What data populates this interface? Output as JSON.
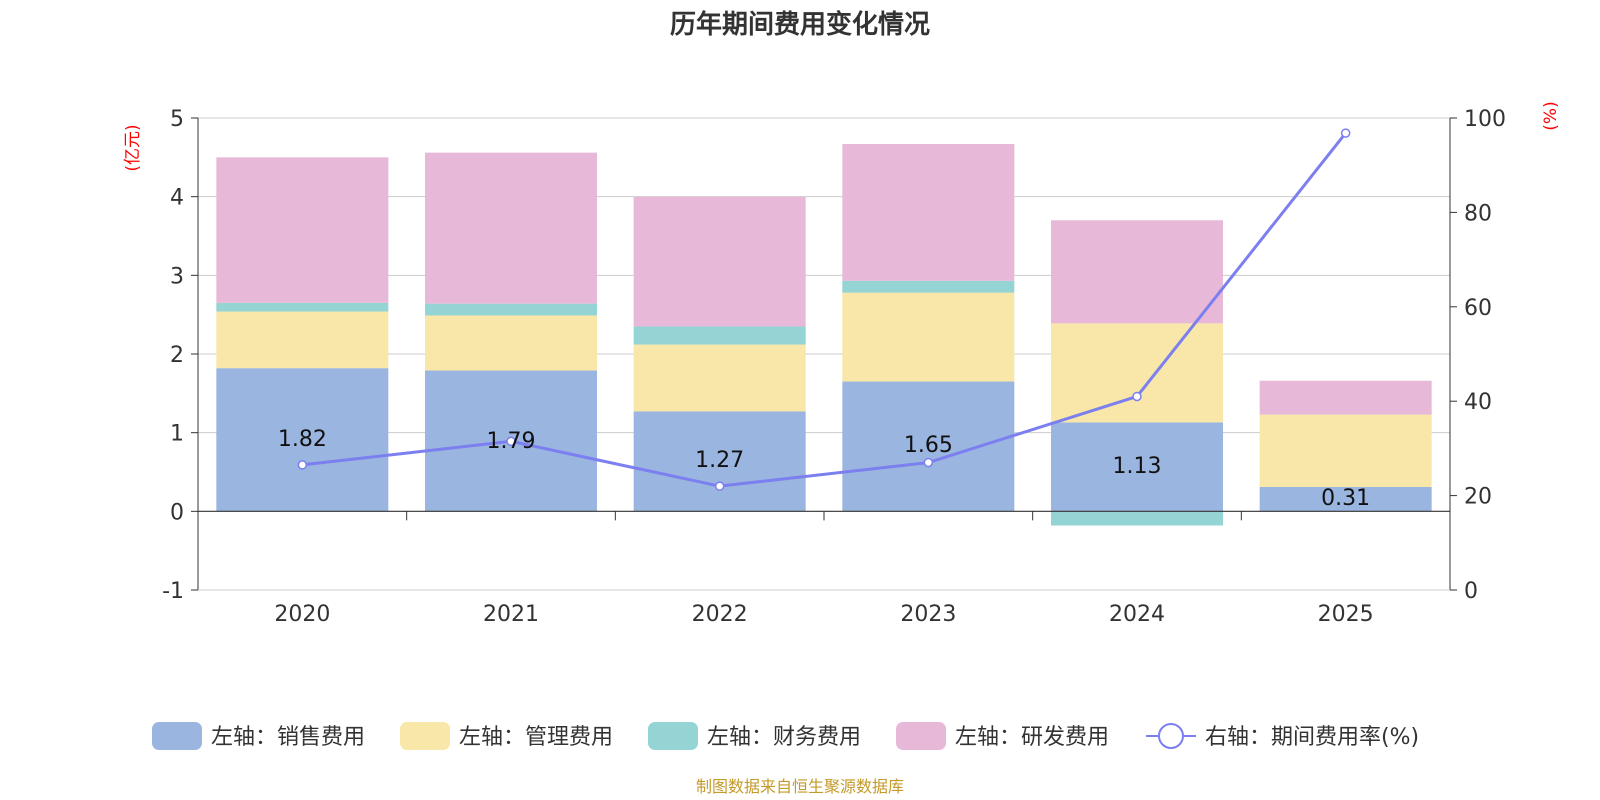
{
  "chart_data": {
    "type": "bar",
    "stacked": true,
    "title": "历年期间费用变化情况",
    "categories": [
      "2020",
      "2021",
      "2022",
      "2023",
      "2024",
      "2025"
    ],
    "left_axis": {
      "unit": "(亿元)",
      "ylim": [
        -1,
        5
      ],
      "ticks": [
        -1,
        0,
        1,
        2,
        3,
        4,
        5
      ]
    },
    "right_axis": {
      "unit": "(%)",
      "ylim": [
        0,
        100
      ],
      "ticks": [
        0,
        20,
        40,
        60,
        80,
        100
      ]
    },
    "series": [
      {
        "name": "左轴：销售费用",
        "axis": "left",
        "color": "#9ab5e0",
        "values": [
          1.82,
          1.79,
          1.27,
          1.65,
          1.13,
          0.31
        ]
      },
      {
        "name": "左轴：管理费用",
        "axis": "left",
        "color": "#f8e7a8",
        "values": [
          0.72,
          0.7,
          0.85,
          1.13,
          1.26,
          0.92
        ]
      },
      {
        "name": "左轴：财务费用",
        "axis": "left",
        "color": "#95d4d4",
        "values": [
          0.11,
          0.15,
          0.23,
          0.15,
          -0.18,
          0.0
        ]
      },
      {
        "name": "左轴：研发费用",
        "axis": "left",
        "color": "#e8b8d8",
        "values": [
          1.85,
          1.92,
          1.65,
          1.74,
          1.31,
          0.43
        ]
      }
    ],
    "line_series": {
      "name": "右轴：期间费用率(%)",
      "axis": "right",
      "color": "#7b7fef",
      "values": [
        26.5,
        31.5,
        22.0,
        27.0,
        41.0,
        96.8
      ]
    },
    "data_labels": [
      "1.82",
      "1.79",
      "1.27",
      "1.65",
      "1.13",
      "0.31"
    ],
    "source": "制图数据来自恒生聚源数据库"
  }
}
